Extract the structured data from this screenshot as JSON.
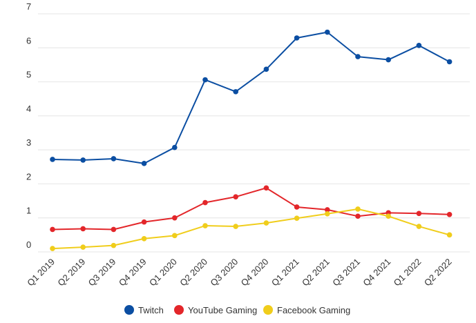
{
  "chart_data": {
    "type": "line",
    "title": "",
    "xlabel": "",
    "ylabel": "",
    "ylim": [
      0,
      7
    ],
    "yticks": [
      0,
      1,
      2,
      3,
      4,
      5,
      6,
      7
    ],
    "grid": "horizontal",
    "legend_position": "bottom",
    "categories": [
      "Q1 2019",
      "Q2 2019",
      "Q3 2019",
      "Q4 2019",
      "Q1 2020",
      "Q2 2020",
      "Q3 2020",
      "Q4 2020",
      "Q1 2021",
      "Q2 2021",
      "Q3 2021",
      "Q4 2021",
      "Q1 2022",
      "Q2 2022"
    ],
    "series": [
      {
        "name": "Twitch",
        "color": "#0b4ea2",
        "values": [
          2.72,
          2.7,
          2.74,
          2.6,
          3.07,
          5.06,
          4.71,
          5.37,
          6.29,
          6.46,
          5.74,
          5.65,
          6.07,
          5.59
        ]
      },
      {
        "name": "YouTube Gaming",
        "color": "#e3262a",
        "values": [
          0.66,
          0.68,
          0.66,
          0.88,
          1.0,
          1.45,
          1.62,
          1.88,
          1.32,
          1.24,
          1.05,
          1.15,
          1.13,
          1.1
        ]
      },
      {
        "name": "Facebook Gaming",
        "color": "#f0cd1b",
        "values": [
          0.1,
          0.14,
          0.19,
          0.39,
          0.48,
          0.77,
          0.75,
          0.85,
          0.99,
          1.12,
          1.26,
          1.05,
          0.75,
          0.5
        ]
      }
    ]
  }
}
